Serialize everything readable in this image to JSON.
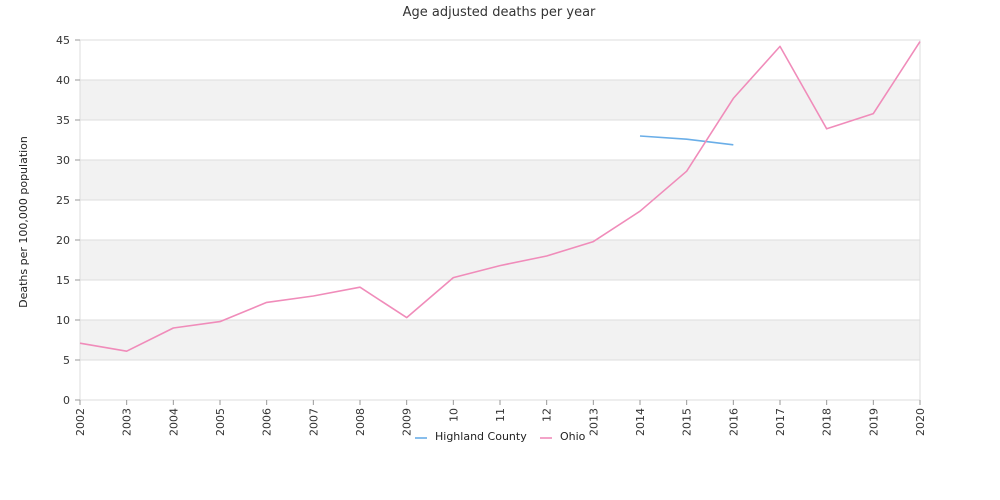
{
  "chart_data": {
    "type": "line",
    "title": "Age adjusted deaths per year",
    "xlabel": "",
    "ylabel": "Deaths per 100,000 population",
    "ylim": [
      0,
      45
    ],
    "y_ticks": [
      0,
      5,
      10,
      15,
      20,
      25,
      30,
      35,
      40,
      45
    ],
    "x": [
      "2002",
      "2003",
      "2004",
      "2005",
      "2006",
      "2007",
      "2008",
      "2009",
      "2010",
      "2011",
      "2012",
      "2013",
      "2014",
      "2015",
      "2016",
      "2017",
      "2018",
      "2019",
      "2020"
    ],
    "x_tick_labels": [
      "2002",
      "2003",
      "2004",
      "2005",
      "2006",
      "2007",
      "2008",
      "2009",
      "10",
      "11",
      "12",
      "2013",
      "2014",
      "2015",
      "2016",
      "2017",
      "2018",
      "2019",
      "2020"
    ],
    "grid": true,
    "legend_position": "bottom",
    "series": [
      {
        "name": "Highland County",
        "color": "#6aaee8",
        "values": [
          null,
          null,
          null,
          null,
          null,
          null,
          null,
          null,
          null,
          null,
          null,
          null,
          33.0,
          32.6,
          31.9,
          null,
          null,
          null,
          null
        ]
      },
      {
        "name": "Ohio",
        "color": "#f08cba",
        "values": [
          7.1,
          6.1,
          9.0,
          9.8,
          12.2,
          13.0,
          14.1,
          10.3,
          15.3,
          16.8,
          18.0,
          19.8,
          23.6,
          28.6,
          37.7,
          44.2,
          33.9,
          35.8,
          44.8
        ]
      }
    ]
  }
}
